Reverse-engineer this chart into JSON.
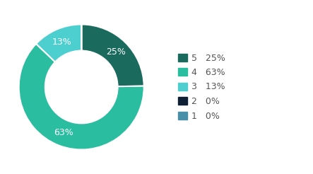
{
  "labels": [
    "5",
    "4",
    "3",
    "2",
    "1"
  ],
  "values": [
    25,
    63,
    13,
    0.001,
    0.001
  ],
  "display_pcts": [
    "25%",
    "63%",
    "13%",
    "0%",
    "0%"
  ],
  "colors": [
    "#1a6b5e",
    "#2bbda0",
    "#4dcfcf",
    "#0f1f35",
    "#4a8fa8"
  ],
  "background_color": "#ffffff",
  "text_color": "#ffffff",
  "label_fontsize": 9,
  "legend_fontsize": 9
}
